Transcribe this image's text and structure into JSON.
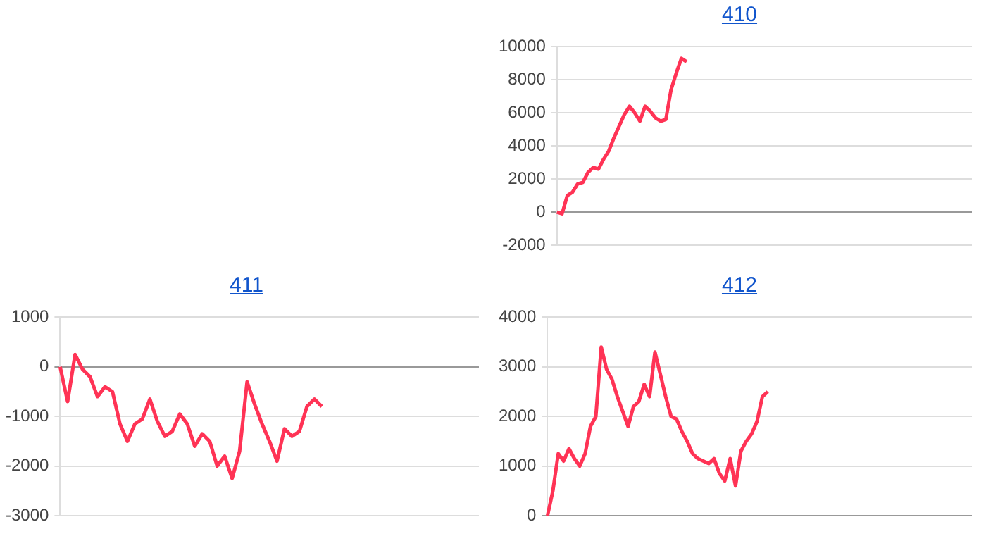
{
  "chart_data": [
    {
      "type": "line",
      "title": "410",
      "tick_labels": "y",
      "grid": "y",
      "legend": false,
      "marker": "none",
      "ylim": [
        -2000,
        10000
      ],
      "yticks": [
        -2000,
        0,
        2000,
        4000,
        6000,
        8000,
        10000
      ],
      "categories": [
        null,
        null,
        null,
        null,
        null,
        null,
        null,
        null,
        null,
        null,
        null,
        null,
        null,
        null,
        null,
        null,
        null,
        null,
        null,
        null,
        null,
        null,
        null,
        null,
        null,
        null,
        null,
        null,
        null,
        null,
        null,
        null,
        null,
        null,
        null,
        null,
        null,
        null,
        null,
        null,
        null,
        null,
        null,
        null,
        null,
        null,
        null,
        null,
        null,
        null,
        null,
        null,
        null,
        null,
        null,
        null,
        null,
        null,
        null,
        null,
        null,
        null,
        null,
        null,
        null,
        null,
        null,
        null,
        null,
        null,
        null,
        null,
        null,
        null,
        null,
        null,
        null,
        null,
        null,
        null,
        null
      ],
      "series": [
        {
          "color": "#ff3355",
          "values": [
            0,
            -100,
            1000,
            1200,
            1700,
            1800,
            2400,
            2700,
            2600,
            3200,
            3700,
            4500,
            5200,
            5900,
            6400,
            6000,
            5500,
            6400,
            6100,
            5700,
            5500,
            5600,
            7400,
            8400,
            9300,
            9100,
            null,
            null,
            null,
            null,
            null,
            null,
            null,
            null,
            null,
            null,
            null,
            null,
            null,
            null,
            null,
            null,
            null,
            null,
            null,
            null,
            null,
            null,
            null,
            null,
            null,
            null,
            null,
            null,
            null,
            null,
            null,
            null,
            null,
            null,
            null,
            null,
            null,
            null,
            null,
            null,
            null,
            null,
            null,
            null,
            null,
            null,
            null,
            null,
            null,
            null,
            null,
            null,
            null,
            null,
            null
          ]
        }
      ]
    },
    {
      "type": "line",
      "title": "411",
      "tick_labels": "y",
      "grid": "y",
      "legend": false,
      "marker": "none",
      "ylim": [
        -3000,
        1000
      ],
      "yticks": [
        -3000,
        -2000,
        -1000,
        0,
        1000
      ],
      "categories": [
        null,
        null,
        null,
        null,
        null,
        null,
        null,
        null,
        null,
        null,
        null,
        null,
        null,
        null,
        null,
        null,
        null,
        null,
        null,
        null,
        null,
        null,
        null,
        null,
        null,
        null,
        null,
        null,
        null,
        null,
        null,
        null,
        null,
        null,
        null,
        null,
        null,
        null,
        null,
        null,
        null,
        null,
        null,
        null,
        null,
        null,
        null,
        null,
        null,
        null,
        null,
        null,
        null,
        null,
        null,
        null,
        null
      ],
      "series": [
        {
          "color": "#ff3355",
          "values": [
            0,
            -700,
            250,
            -50,
            -200,
            -600,
            -400,
            -500,
            -1150,
            -1500,
            -1150,
            -1050,
            -650,
            -1100,
            -1400,
            -1300,
            -950,
            -1150,
            -1600,
            -1350,
            -1500,
            -2000,
            -1800,
            -2250,
            -1700,
            -300,
            -750,
            -1150,
            -1500,
            -1900,
            -1250,
            -1400,
            -1300,
            -800,
            -650,
            -800,
            null,
            null,
            null,
            null,
            null,
            null,
            null,
            null,
            null,
            null,
            null,
            null,
            null,
            null,
            null,
            null,
            null,
            null,
            null,
            null,
            null
          ]
        }
      ]
    },
    {
      "type": "line",
      "title": "412",
      "tick_labels": "y",
      "grid": "y",
      "legend": false,
      "marker": "none",
      "ylim": [
        0,
        4000
      ],
      "yticks": [
        0,
        1000,
        2000,
        3000,
        4000
      ],
      "categories": [
        null,
        null,
        null,
        null,
        null,
        null,
        null,
        null,
        null,
        null,
        null,
        null,
        null,
        null,
        null,
        null,
        null,
        null,
        null,
        null,
        null,
        null,
        null,
        null,
        null,
        null,
        null,
        null,
        null,
        null,
        null,
        null,
        null,
        null,
        null,
        null,
        null,
        null,
        null,
        null,
        null,
        null,
        null,
        null,
        null,
        null,
        null,
        null,
        null,
        null,
        null,
        null,
        null,
        null,
        null,
        null,
        null,
        null,
        null,
        null,
        null,
        null,
        null,
        null,
        null,
        null,
        null,
        null,
        null,
        null,
        null,
        null,
        null,
        null,
        null,
        null,
        null,
        null,
        null,
        null
      ],
      "series": [
        {
          "color": "#ff3355",
          "values": [
            0,
            500,
            1250,
            1100,
            1350,
            1150,
            1000,
            1250,
            1800,
            2000,
            3400,
            2950,
            2750,
            2400,
            2100,
            1800,
            2200,
            2300,
            2650,
            2400,
            3300,
            2850,
            2400,
            2000,
            1950,
            1700,
            1500,
            1250,
            1150,
            1100,
            1050,
            1150,
            850,
            700,
            1150,
            600,
            1300,
            1500,
            1650,
            1900,
            2400,
            2500,
            null,
            null,
            null,
            null,
            null,
            null,
            null,
            null,
            null,
            null,
            null,
            null,
            null,
            null,
            null,
            null,
            null,
            null,
            null,
            null,
            null,
            null,
            null,
            null,
            null,
            null,
            null,
            null,
            null,
            null,
            null,
            null,
            null,
            null,
            null,
            null,
            null,
            null
          ]
        }
      ]
    }
  ]
}
